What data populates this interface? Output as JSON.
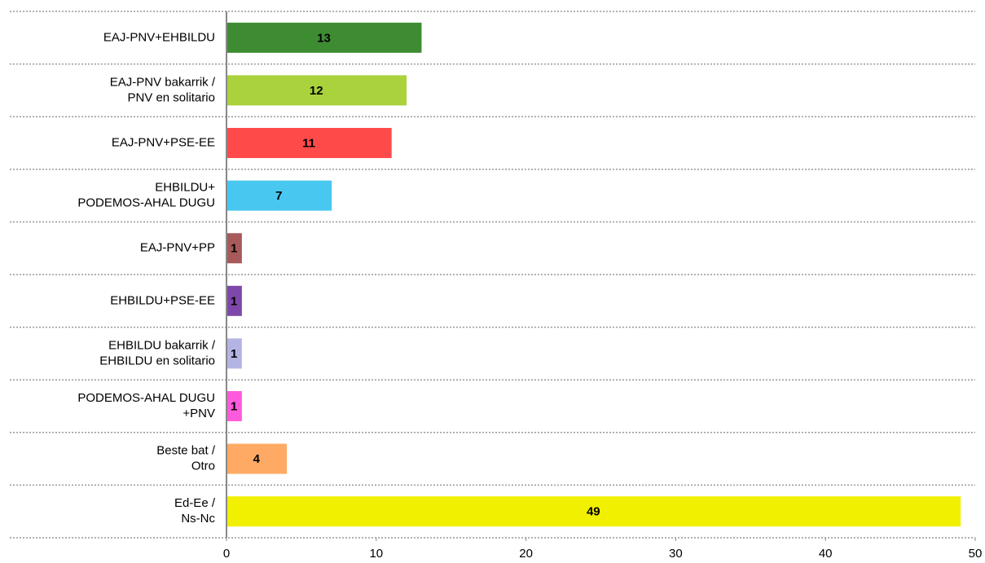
{
  "chart_data": {
    "type": "bar",
    "orientation": "horizontal",
    "categories": [
      [
        "EAJ-PNV+EHBILDU"
      ],
      [
        "EAJ-PNV bakarrik /",
        "PNV en solitario"
      ],
      [
        "EAJ-PNV+PSE-EE"
      ],
      [
        "EHBILDU+",
        "PODEMOS-AHAL DUGU"
      ],
      [
        "EAJ-PNV+PP"
      ],
      [
        "EHBILDU+PSE-EE"
      ],
      [
        "EHBILDU bakarrik /",
        "EHBILDU en solitario"
      ],
      [
        "PODEMOS-AHAL DUGU",
        "+PNV"
      ],
      [
        "Beste bat /",
        "Otro"
      ],
      [
        "Ed-Ee /",
        "Ns-Nc"
      ]
    ],
    "values": [
      13,
      12,
      11,
      7,
      1,
      1,
      1,
      1,
      4,
      49
    ],
    "colors": [
      "#3d8c32",
      "#a9d23c",
      "#ff4a4a",
      "#48c8f0",
      "#a85a5a",
      "#7e48aa",
      "#b4b4e4",
      "#ff5adc",
      "#ffaa64",
      "#f0f000"
    ],
    "xlim": [
      0,
      50
    ],
    "xticks": [
      0,
      10,
      20,
      30,
      40,
      50
    ]
  }
}
